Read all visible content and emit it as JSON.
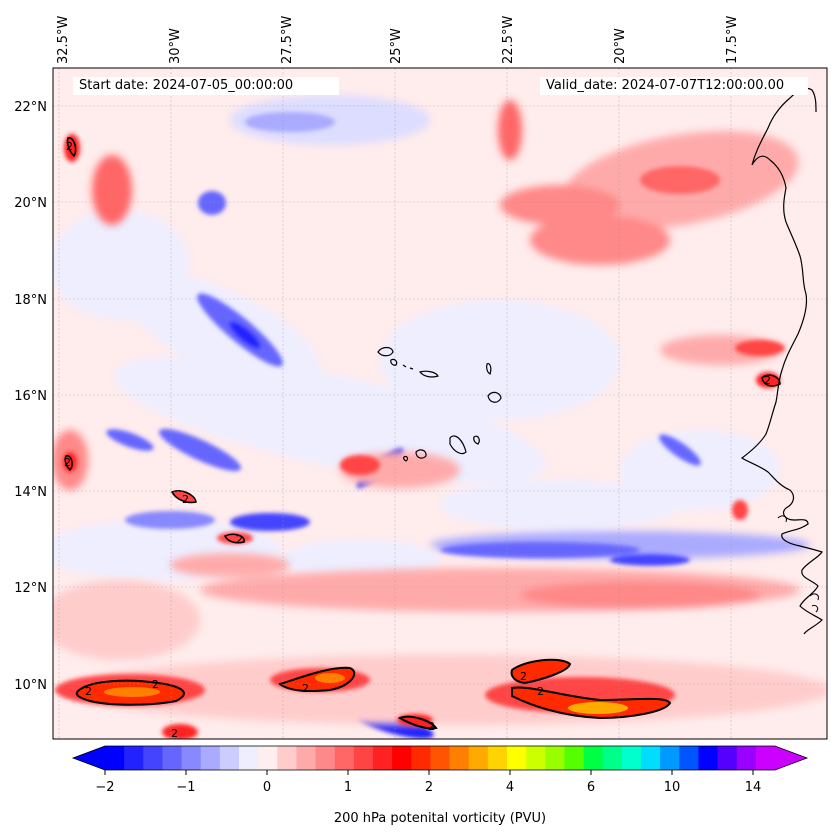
{
  "annotations": {
    "start_date": "Start date: 2024-07-05_00:00:00",
    "valid_date": "Valid_date: 2024-07-07T12:00:00.00"
  },
  "map": {
    "projection": "Mercator",
    "lon_labels": [
      "32.5°W",
      "30°W",
      "27.5°W",
      "25°W",
      "22.5°W",
      "20°W",
      "17.5°W"
    ],
    "lat_labels": [
      "22°N",
      "20°N",
      "18°N",
      "16°N",
      "14°N",
      "12°N",
      "10°N"
    ],
    "extent": {
      "lon_min": -33.0,
      "lon_max": -15.9,
      "lat_min": 8.9,
      "lat_max": 22.8
    },
    "contour_level_label": "2",
    "features": [
      "coastline of West Africa (Mauritania, Senegal, Gambia, Guinea-Bissau)",
      "Cape Verde islands"
    ]
  },
  "colorbar": {
    "label": "200 hPa potenital vorticity (PVU)",
    "tick_labels": [
      "−2",
      "−1",
      "0",
      "1",
      "2",
      "4",
      "6",
      "10",
      "14"
    ],
    "colors": [
      "#0000ff",
      "#2222ff",
      "#4444ff",
      "#6666ff",
      "#8888ff",
      "#aaaaff",
      "#ccccff",
      "#eeeeff",
      "#ffeeee",
      "#ffcccc",
      "#ffaaaa",
      "#ff8888",
      "#ff6666",
      "#ff4444",
      "#ff2222",
      "#ff0000",
      "#ff2a00",
      "#ff5500",
      "#ff7f00",
      "#ffaa00",
      "#ffd400",
      "#ffff00",
      "#ccff00",
      "#99ff00",
      "#55ff00",
      "#00ff44",
      "#00ff88",
      "#00ffcc",
      "#00ddff",
      "#0099ff",
      "#0055ff",
      "#0000ff",
      "#5500ff",
      "#9900ff",
      "#cc00ff"
    ],
    "extend_low_color": "#0000ff",
    "extend_high_color": "#cc00ff"
  },
  "chart_data": {
    "type": "heatmap",
    "variable": "200 hPa potential vorticity",
    "units": "PVU",
    "contour_levels": [
      2
    ],
    "colorbar_ticks": [
      -2,
      -1,
      0,
      1,
      2,
      4,
      6,
      10,
      14
    ],
    "xlabels": [
      "32.5°W",
      "30°W",
      "27.5°W",
      "25°W",
      "22.5°W",
      "20°W",
      "17.5°W"
    ],
    "ylabels": [
      "22°N",
      "20°N",
      "18°N",
      "16°N",
      "14°N",
      "12°N",
      "10°N"
    ]
  }
}
